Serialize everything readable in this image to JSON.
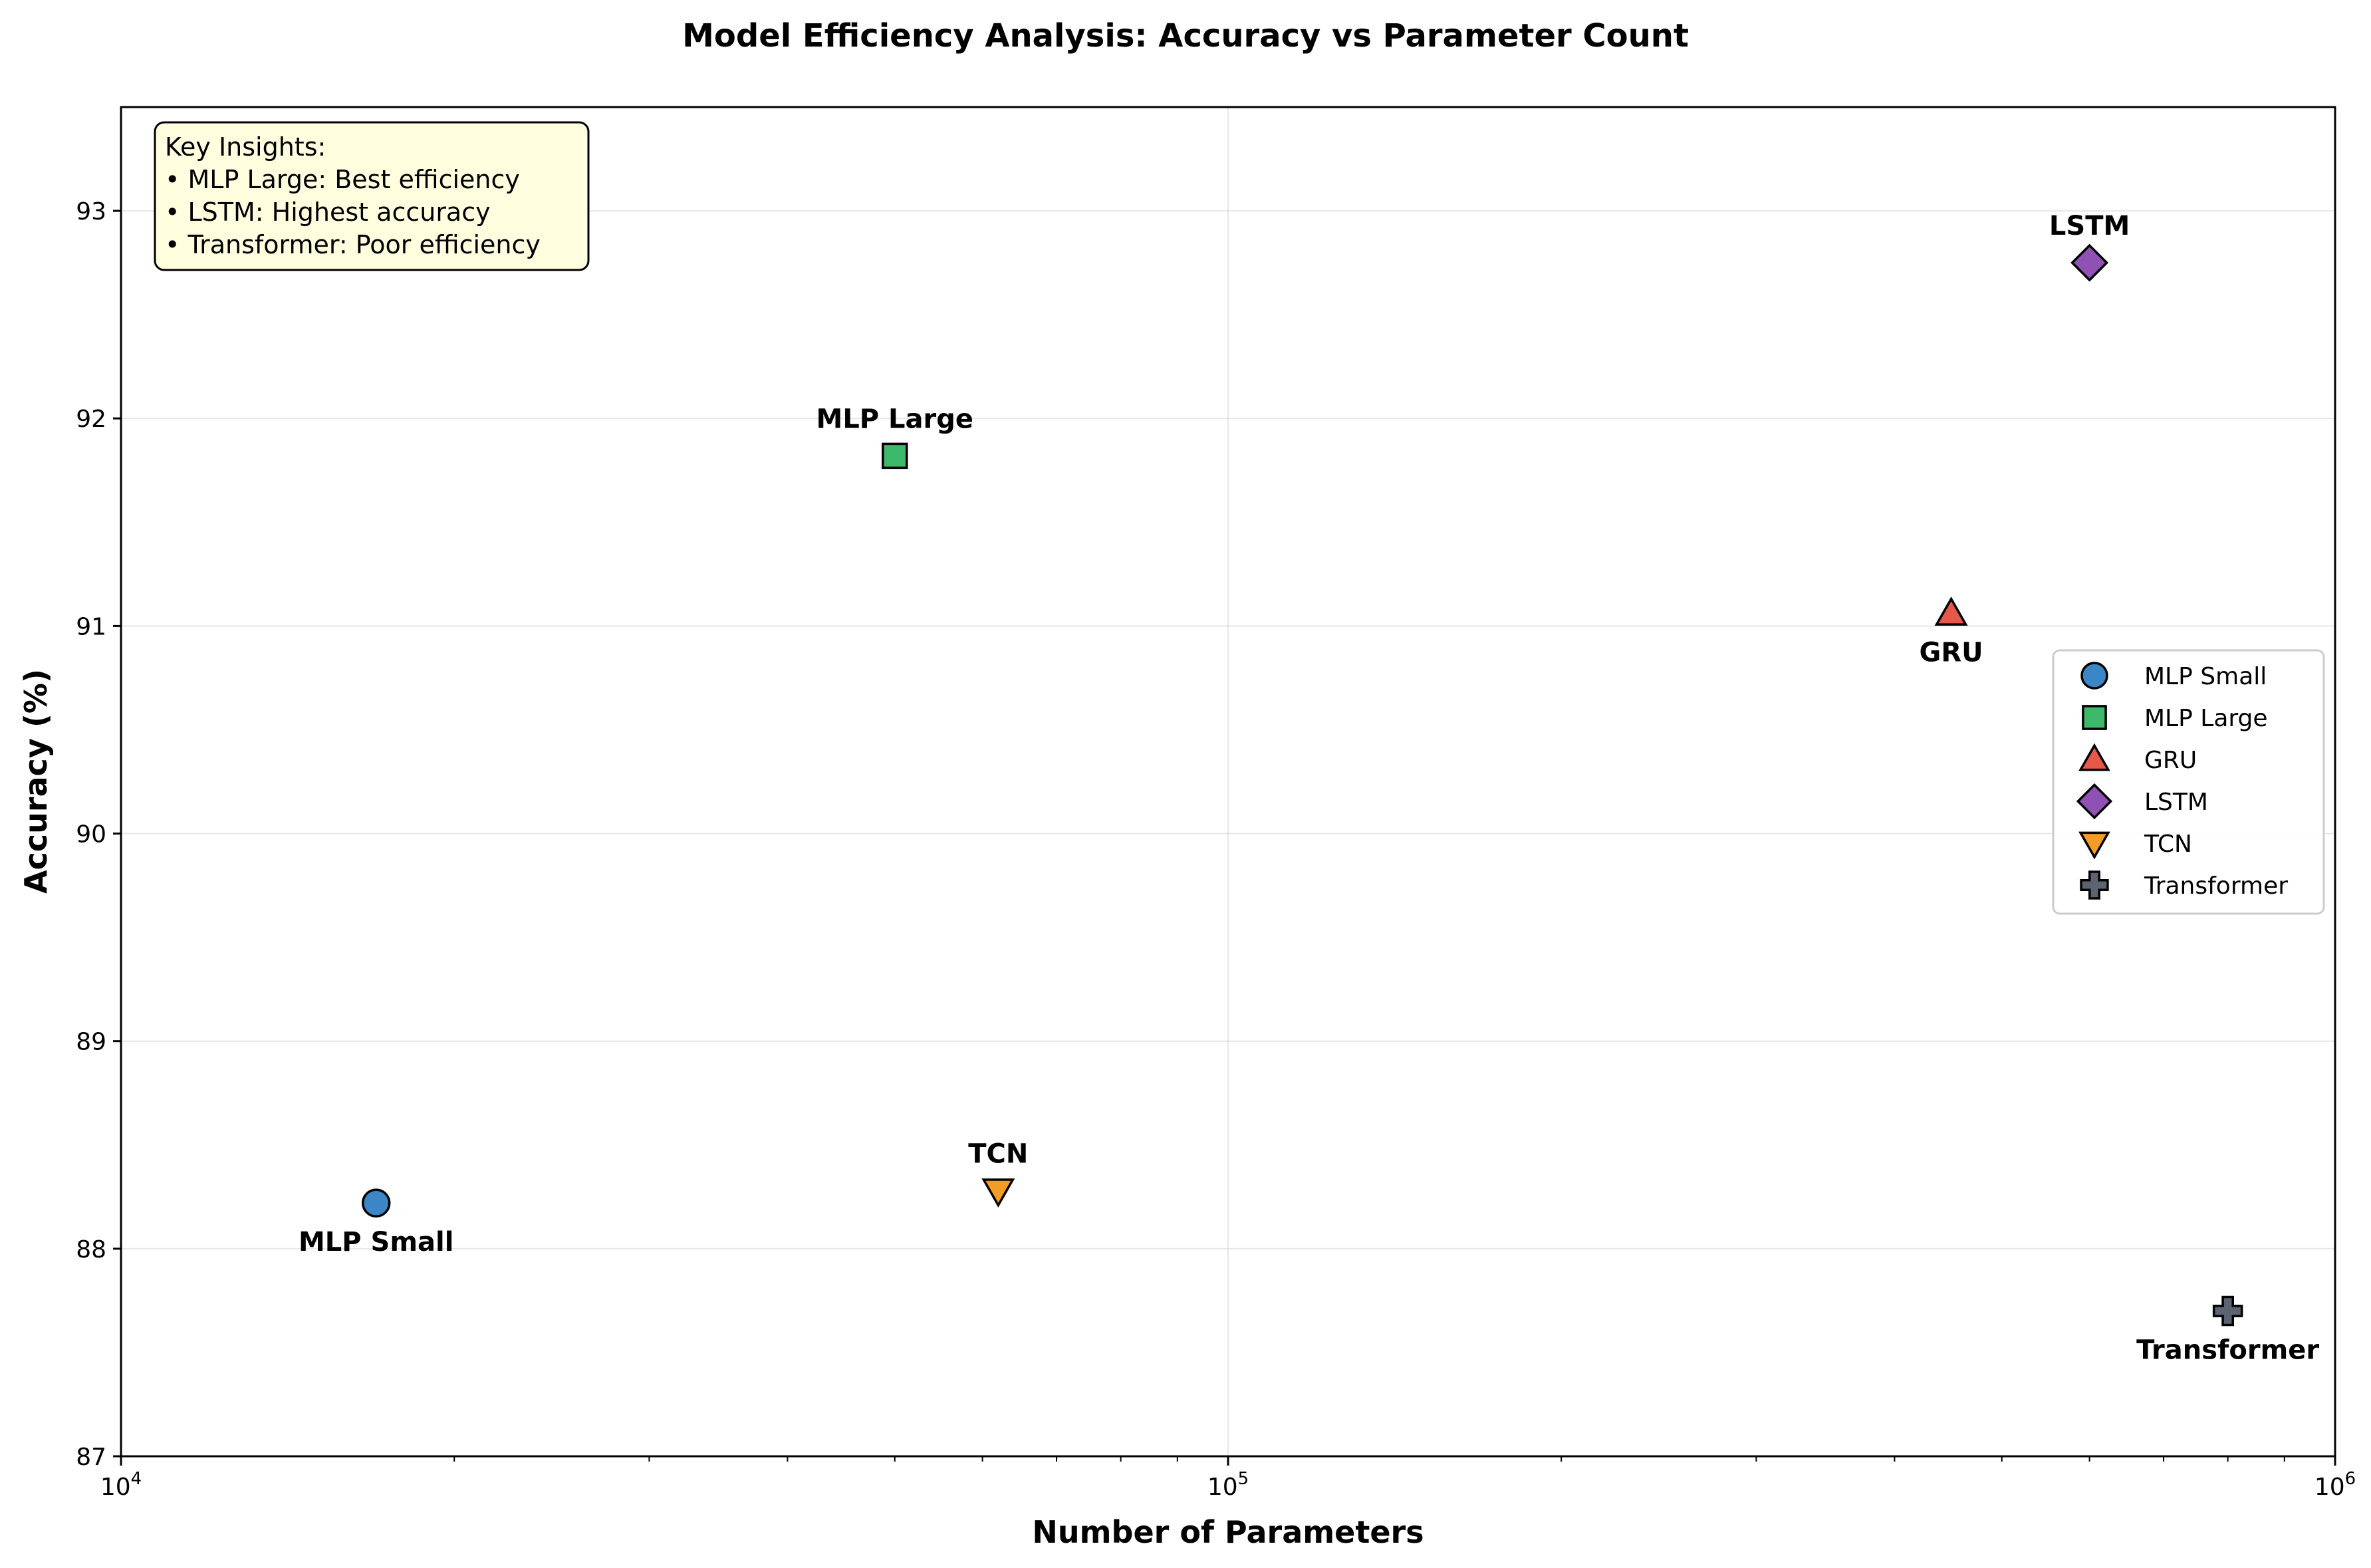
{
  "chart_data": {
    "type": "scatter",
    "title": "Model Efficiency Analysis: Accuracy vs Parameter Count",
    "xlabel": "Number of Parameters",
    "ylabel": "Accuracy (%)",
    "xscale": "log",
    "xlim": [
      10000,
      1000000
    ],
    "ylim": [
      87,
      93.5
    ],
    "x_ticks": [
      {
        "value": 10000,
        "base": "10",
        "exp": "4"
      },
      {
        "value": 100000,
        "base": "10",
        "exp": "5"
      },
      {
        "value": 1000000,
        "base": "10",
        "exp": "6"
      }
    ],
    "y_ticks": [
      {
        "value": 87,
        "label": "87"
      },
      {
        "value": 88,
        "label": "88"
      },
      {
        "value": 89,
        "label": "89"
      },
      {
        "value": 90,
        "label": "90"
      },
      {
        "value": 91,
        "label": "91"
      },
      {
        "value": 92,
        "label": "92"
      },
      {
        "value": 93,
        "label": "93"
      }
    ],
    "grid": true,
    "legend_position": "center-right",
    "series": [
      {
        "name": "MLP Small",
        "x": 17000,
        "y": 88.22,
        "marker": "circle",
        "color": "#3b86c6",
        "label_pos": "below"
      },
      {
        "name": "MLP Large",
        "x": 50000,
        "y": 91.82,
        "marker": "square",
        "color": "#3cb96a",
        "label_pos": "above"
      },
      {
        "name": "GRU",
        "x": 450000,
        "y": 91.06,
        "marker": "triangle-up",
        "color": "#e8584a",
        "label_pos": "below"
      },
      {
        "name": "LSTM",
        "x": 600000,
        "y": 92.75,
        "marker": "diamond",
        "color": "#9051b4",
        "label_pos": "above"
      },
      {
        "name": "TCN",
        "x": 62000,
        "y": 88.28,
        "marker": "triangle-down",
        "color": "#f39c26",
        "label_pos": "above"
      },
      {
        "name": "Transformer",
        "x": 800000,
        "y": 87.7,
        "marker": "plus",
        "color": "#5b6470",
        "label_pos": "below"
      }
    ],
    "insights_box": {
      "title": "Key Insights:",
      "lines": [
        "• MLP Large: Best efficiency",
        "• LSTM: Highest accuracy",
        "• Transformer: Poor efficiency"
      ],
      "background": "#ffffe0"
    }
  }
}
